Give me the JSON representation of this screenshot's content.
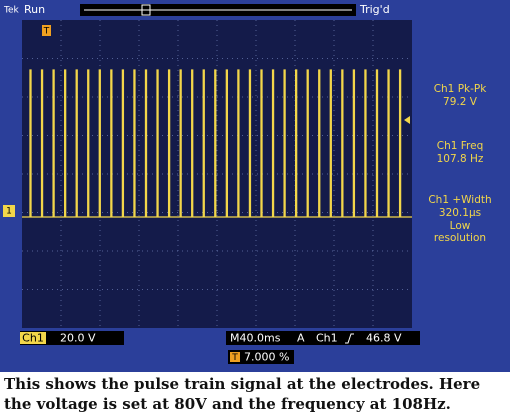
{
  "screen": {
    "brand": "Tek",
    "state": "Run",
    "trigger_state": "Trig'd",
    "trigger_marker": "T",
    "channel_marker": "1"
  },
  "readouts": [
    {
      "label": "Ch1 Pk-Pk",
      "value": "79.2 V"
    },
    {
      "label": "Ch1 Freq",
      "value": "107.8 Hz"
    },
    {
      "label": "Ch1 +Width",
      "value": "320.1µs",
      "note": [
        "Low",
        "resolution"
      ]
    }
  ],
  "bottom": {
    "channel": "Ch1",
    "scale": "20.0 V",
    "timebase": "M40.0ms",
    "trigger_mode": "A",
    "trigger_source": "Ch1",
    "trigger_level": "46.8 V",
    "position_marker": "T",
    "position": "7.000 %"
  },
  "caption": "This shows the pulse train signal at the electrodes. Here the voltage is set at 80V and the frequency at 108Hz."
}
